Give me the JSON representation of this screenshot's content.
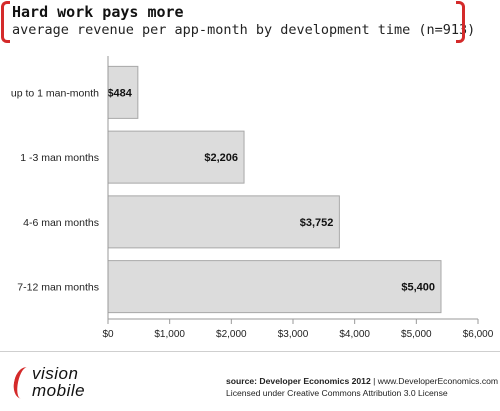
{
  "header": {
    "title": "Hard work pays more",
    "subtitle": "average revenue per app-month by development time (n=913)"
  },
  "chart_data": {
    "type": "bar",
    "orientation": "horizontal",
    "categories": [
      "up to 1 man-month",
      "1 -3 man months",
      "4-6 man months",
      "7-12 man months"
    ],
    "values": [
      484,
      2206,
      3752,
      5400
    ],
    "value_labels": [
      "$484",
      "$2,206",
      "$3,752",
      "$5,400"
    ],
    "xlim": [
      0,
      6000
    ],
    "x_ticks": [
      0,
      1000,
      2000,
      3000,
      4000,
      5000,
      6000
    ],
    "x_tick_labels": [
      "$0",
      "$1,000",
      "$2,000",
      "$3,000",
      "$4,000",
      "$5,000",
      "$6,000"
    ],
    "grid": false,
    "bar_color": "#dcdcdc",
    "bar_stroke": "#a8a8a8"
  },
  "footer": {
    "logo_line1": "vision",
    "logo_line2": "mobile",
    "source_prefix": "source: Developer Economics 2012",
    "source_suffix": " | www.DeveloperEconomics.com",
    "license": "Licensed under Creative Commons Attribution 3.0 License"
  },
  "colors": {
    "accent": "#d42a2a"
  }
}
